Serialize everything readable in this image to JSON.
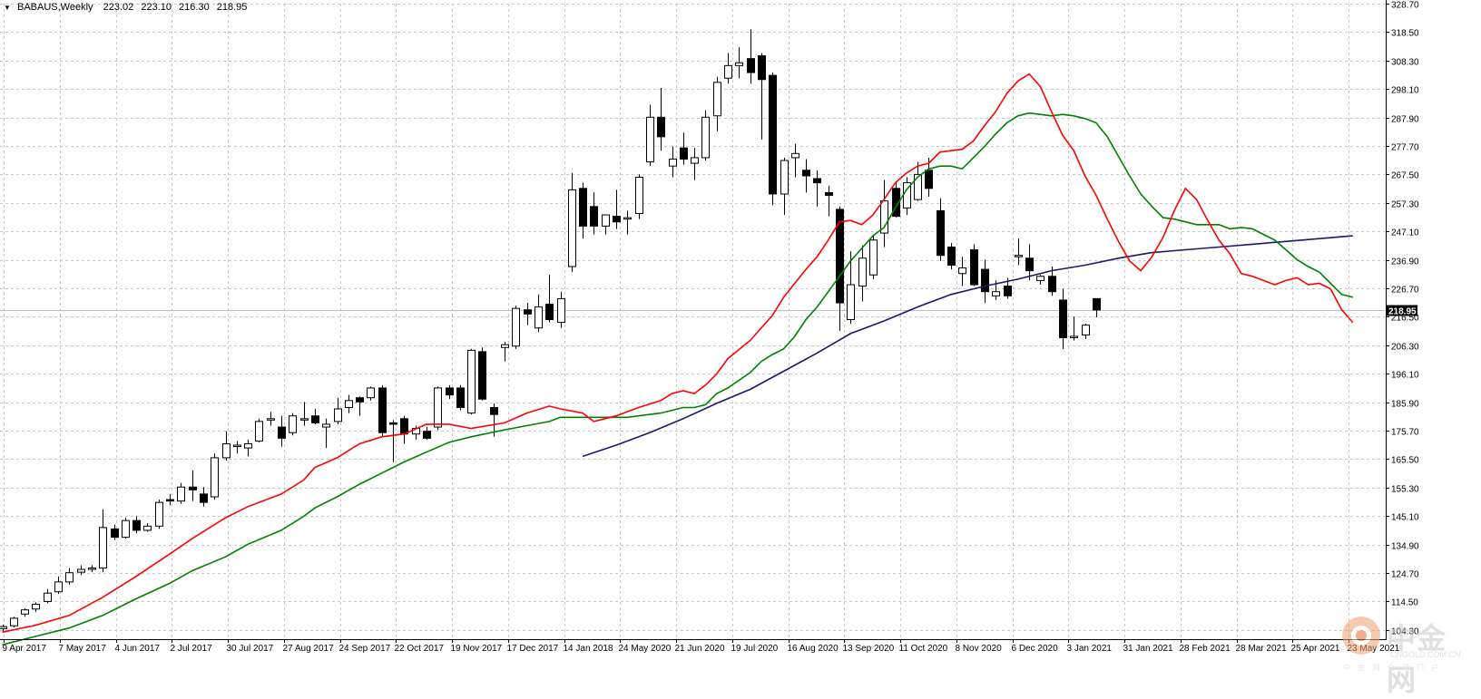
{
  "header": {
    "symbol": "BABAUS,Weekly",
    "open": "223.02",
    "high": "223.10",
    "low": "216.30",
    "close": "218.95"
  },
  "watermark": {
    "name": "中金网",
    "site": "CNGOLD.COM.CN",
    "tagline": "中 金 网 全 球 门 户"
  },
  "colors": {
    "background": "#ffffff",
    "grid": "#c8c8c8",
    "candle_up_fill": "#ffffff",
    "candle_down_fill": "#000000",
    "ma_fast": "#ff0000",
    "ma_medium": "#008000",
    "ma_slow": "#191970",
    "price_line": "#c0c0c0",
    "price_badge": "#000000"
  },
  "chart_data": {
    "type": "candlestick",
    "timeframe": "Weekly",
    "ylim": [
      101.0,
      328.7
    ],
    "grid": true,
    "y_ticks": [
      "328.70",
      "318.50",
      "308.30",
      "298.10",
      "287.90",
      "277.70",
      "267.50",
      "257.30",
      "247.10",
      "236.90",
      "226.70",
      "216.50",
      "206.30",
      "196.10",
      "185.90",
      "175.70",
      "165.50",
      "155.30",
      "145.10",
      "134.90",
      "124.70",
      "114.50",
      "104.30"
    ],
    "x_ticks": [
      "9 Apr 2017",
      "7 May 2017",
      "4 Jun 2017",
      "2 Jul 2017",
      "30 Jul 2017",
      "27 Aug 2017",
      "24 Sep 2017",
      "22 Oct 2017",
      "19 Nov 2017",
      "17 Dec 2017",
      "14 Jan 2018",
      "24 May 2020",
      "21 Jun 2020",
      "19 Jul 2020",
      "16 Aug 2020",
      "13 Sep 2020",
      "11 Oct 2020",
      "8 Nov 2020",
      "6 Dec 2020",
      "3 Jan 2021",
      "31 Jan 2021",
      "28 Feb 2021",
      "28 Mar 2021",
      "25 Apr 2021",
      "23 May 2021"
    ],
    "last_price": "218.95",
    "candles": [
      [
        104.8,
        106.2,
        103.8,
        105.5
      ],
      [
        105.8,
        109.0,
        105.2,
        108.5
      ],
      [
        110.0,
        112.0,
        109.0,
        111.5
      ],
      [
        111.8,
        114.2,
        110.8,
        113.5
      ],
      [
        114.5,
        119.0,
        113.8,
        117.5
      ],
      [
        118.0,
        123.5,
        117.2,
        121.5
      ],
      [
        121.5,
        126.5,
        120.5,
        124.8
      ],
      [
        125.0,
        127.5,
        124.0,
        126.0
      ],
      [
        126.0,
        127.5,
        125.0,
        126.5
      ],
      [
        126.5,
        147.5,
        125.0,
        141.0
      ],
      [
        140.5,
        142.0,
        136.5,
        137.5
      ],
      [
        137.5,
        144.5,
        137.0,
        143.5
      ],
      [
        143.5,
        145.0,
        139.0,
        140.0
      ],
      [
        140.0,
        142.5,
        139.5,
        141.5
      ],
      [
        141.5,
        151.0,
        140.5,
        150.0
      ],
      [
        151.0,
        153.0,
        149.0,
        150.5
      ],
      [
        150.5,
        157.0,
        149.5,
        155.5
      ],
      [
        155.5,
        161.5,
        150.5,
        154.5
      ],
      [
        153.0,
        155.5,
        148.5,
        150.0
      ],
      [
        152.0,
        167.5,
        151.0,
        166.0
      ],
      [
        166.0,
        175.5,
        165.0,
        171.0
      ],
      [
        170.0,
        172.0,
        167.5,
        170.5
      ],
      [
        169.5,
        172.5,
        166.5,
        171.0
      ],
      [
        172.0,
        180.0,
        171.5,
        179.0
      ],
      [
        179.5,
        182.5,
        177.5,
        180.0
      ],
      [
        177.0,
        181.0,
        170.0,
        173.0
      ],
      [
        175.0,
        182.0,
        174.0,
        181.0
      ],
      [
        179.5,
        186.0,
        177.5,
        180.0
      ],
      [
        181.0,
        183.5,
        178.0,
        178.5
      ],
      [
        177.0,
        180.0,
        169.5,
        178.0
      ],
      [
        179.0,
        187.5,
        178.0,
        183.5
      ],
      [
        184.0,
        188.5,
        182.0,
        186.5
      ],
      [
        187.5,
        188.0,
        181.0,
        186.0
      ],
      [
        187.5,
        191.5,
        186.5,
        191.0
      ],
      [
        191.0,
        192.0,
        173.5,
        175.0
      ],
      [
        178.5,
        179.5,
        164.5,
        178.0
      ],
      [
        180.0,
        181.0,
        171.0,
        174.5
      ],
      [
        174.5,
        177.5,
        172.5,
        176.5
      ],
      [
        175.5,
        177.0,
        172.5,
        173.0
      ],
      [
        177.0,
        191.5,
        176.0,
        191.0
      ],
      [
        191.0,
        192.0,
        187.0,
        188.5
      ],
      [
        191.0,
        192.0,
        183.0,
        184.0
      ],
      [
        182.0,
        205.0,
        181.5,
        204.5
      ],
      [
        204.0,
        205.5,
        186.5,
        187.0
      ],
      [
        184.0,
        185.5,
        173.5,
        181.5
      ],
      [
        205.5,
        207.5,
        200.5,
        206.5
      ],
      [
        206.0,
        220.5,
        205.0,
        219.5
      ],
      [
        219.0,
        221.5,
        213.5,
        217.5
      ],
      [
        212.5,
        224.5,
        211.0,
        220.0
      ],
      [
        221.0,
        231.5,
        214.5,
        215.5
      ],
      [
        214.5,
        225.5,
        212.5,
        223.0
      ],
      [
        234.5,
        268.0,
        232.5,
        262.0
      ],
      [
        262.5,
        264.5,
        244.5,
        249.0
      ],
      [
        256.0,
        261.0,
        246.0,
        249.0
      ],
      [
        249.0,
        252.0,
        246.0,
        253.0
      ],
      [
        252.5,
        262.0,
        248.0,
        250.5
      ],
      [
        251.5,
        254.5,
        246.0,
        252.0
      ],
      [
        253.5,
        267.5,
        251.5,
        266.5
      ],
      [
        272.0,
        292.5,
        270.5,
        288.0
      ],
      [
        288.0,
        298.5,
        276.0,
        281.0
      ],
      [
        270.5,
        277.5,
        266.5,
        273.0
      ],
      [
        277.0,
        282.5,
        271.0,
        273.0
      ],
      [
        271.5,
        277.0,
        265.5,
        273.5
      ],
      [
        273.5,
        290.5,
        272.5,
        288.0
      ],
      [
        288.5,
        302.5,
        283.0,
        300.5
      ],
      [
        302.0,
        311.0,
        300.0,
        306.5
      ],
      [
        306.5,
        313.0,
        302.0,
        307.5
      ],
      [
        309.0,
        319.5,
        300.0,
        304.0
      ],
      [
        310.0,
        311.0,
        280.0,
        301.5
      ],
      [
        303.0,
        304.0,
        256.5,
        260.5
      ],
      [
        260.5,
        273.5,
        253.0,
        272.5
      ],
      [
        273.5,
        278.5,
        266.5,
        275.0
      ],
      [
        269.0,
        273.0,
        261.0,
        267.0
      ],
      [
        266.0,
        269.0,
        256.0,
        264.5
      ],
      [
        261.0,
        263.5,
        252.5,
        260.0
      ],
      [
        255.0,
        256.0,
        211.5,
        221.5
      ],
      [
        215.5,
        240.0,
        214.0,
        228.0
      ],
      [
        227.5,
        242.0,
        222.0,
        237.5
      ],
      [
        231.5,
        245.5,
        230.0,
        244.0
      ],
      [
        246.5,
        265.5,
        241.5,
        258.0
      ],
      [
        262.5,
        265.0,
        252.0,
        252.5
      ],
      [
        255.5,
        266.5,
        253.0,
        264.5
      ],
      [
        258.5,
        272.0,
        258.0,
        267.5
      ],
      [
        269.0,
        273.5,
        259.5,
        262.5
      ],
      [
        254.5,
        259.0,
        236.5,
        238.5
      ],
      [
        241.5,
        243.0,
        233.5,
        235.0
      ],
      [
        232.0,
        238.0,
        227.5,
        234.0
      ],
      [
        240.5,
        242.5,
        227.5,
        228.0
      ],
      [
        233.5,
        237.0,
        221.5,
        225.5
      ],
      [
        224.0,
        229.5,
        222.5,
        225.5
      ],
      [
        227.5,
        230.5,
        223.0,
        224.0
      ],
      [
        238.0,
        244.5,
        235.0,
        238.5
      ],
      [
        237.5,
        242.5,
        229.5,
        233.0
      ],
      [
        229.5,
        231.5,
        228.0,
        231.0
      ],
      [
        231.0,
        234.5,
        224.0,
        225.5
      ],
      [
        222.5,
        226.5,
        205.0,
        209.0
      ],
      [
        209.0,
        216.5,
        208.0,
        209.5
      ],
      [
        210.0,
        214.0,
        208.5,
        213.5
      ],
      [
        223.02,
        223.1,
        216.3,
        218.95
      ]
    ],
    "ma_fast": [
      [
        0,
        103.5
      ],
      [
        3,
        106.0
      ],
      [
        6,
        109.5
      ],
      [
        9,
        116.0
      ],
      [
        12,
        123.5
      ],
      [
        15,
        131.5
      ],
      [
        17,
        137.0
      ],
      [
        20,
        144.5
      ],
      [
        22,
        148.5
      ],
      [
        25,
        153.0
      ],
      [
        27,
        158.0
      ],
      [
        28,
        162.5
      ],
      [
        30,
        166.0
      ],
      [
        32,
        171.0
      ],
      [
        34,
        173.5
      ],
      [
        36,
        174.5
      ],
      [
        38,
        178.0
      ],
      [
        40,
        178.0
      ],
      [
        42,
        176.5
      ],
      [
        45,
        178.5
      ],
      [
        47,
        182.0
      ],
      [
        49,
        184.5
      ],
      [
        50,
        183.5
      ],
      [
        52,
        182.0
      ],
      [
        53,
        179.0
      ],
      [
        55,
        181.0
      ],
      [
        56,
        182.5
      ],
      [
        57,
        184.0
      ],
      [
        59,
        186.5
      ],
      [
        60,
        189.0
      ],
      [
        61,
        190.0
      ],
      [
        62,
        189.0
      ],
      [
        63,
        192.0
      ],
      [
        64,
        196.0
      ],
      [
        65,
        201.5
      ],
      [
        67,
        208.0
      ],
      [
        68,
        212.5
      ],
      [
        69,
        217.0
      ],
      [
        70,
        223.5
      ],
      [
        71,
        228.5
      ],
      [
        72,
        233.5
      ],
      [
        73,
        238.0
      ],
      [
        74,
        244.0
      ],
      [
        75,
        250.5
      ],
      [
        76,
        251.0
      ],
      [
        77,
        249.5
      ],
      [
        78,
        253.0
      ],
      [
        79,
        258.5
      ],
      [
        80,
        264.5
      ],
      [
        81,
        268.0
      ],
      [
        82,
        270.5
      ],
      [
        83,
        271.5
      ],
      [
        84,
        275.5
      ],
      [
        85,
        276.0
      ],
      [
        86,
        276.5
      ],
      [
        87,
        279.5
      ],
      [
        88,
        285.0
      ],
      [
        89,
        290.0
      ],
      [
        90,
        296.5
      ],
      [
        91,
        301.0
      ],
      [
        92,
        303.5
      ],
      [
        93,
        299.0
      ],
      [
        94,
        290.0
      ],
      [
        95,
        281.5
      ],
      [
        96,
        276.0
      ],
      [
        97,
        267.0
      ],
      [
        98,
        260.0
      ],
      [
        99,
        251.5
      ],
      [
        100,
        243.5
      ],
      [
        101,
        236.5
      ],
      [
        102,
        233.0
      ],
      [
        103,
        238.0
      ],
      [
        104,
        245.0
      ],
      [
        105,
        254.5
      ],
      [
        106,
        262.5
      ],
      [
        107,
        258.5
      ],
      [
        108,
        251.0
      ],
      [
        109,
        244.0
      ],
      [
        110,
        239.0
      ],
      [
        111,
        232.0
      ],
      [
        112,
        231.0
      ],
      [
        113,
        229.5
      ],
      [
        114,
        228.0
      ],
      [
        115,
        229.5
      ],
      [
        116,
        230.5
      ],
      [
        117,
        228.0
      ],
      [
        118,
        228.5
      ],
      [
        119,
        226.5
      ],
      [
        120,
        219.0
      ],
      [
        121,
        214.5
      ]
    ],
    "ma_medium": [
      [
        0,
        99.0
      ],
      [
        3,
        102.0
      ],
      [
        6,
        105.0
      ],
      [
        9,
        109.5
      ],
      [
        12,
        115.5
      ],
      [
        15,
        121.0
      ],
      [
        17,
        125.5
      ],
      [
        20,
        130.5
      ],
      [
        22,
        135.0
      ],
      [
        25,
        140.0
      ],
      [
        27,
        145.0
      ],
      [
        28,
        148.0
      ],
      [
        30,
        152.0
      ],
      [
        32,
        156.5
      ],
      [
        34,
        160.5
      ],
      [
        36,
        164.5
      ],
      [
        38,
        168.0
      ],
      [
        40,
        171.5
      ],
      [
        42,
        173.5
      ],
      [
        45,
        176.0
      ],
      [
        47,
        177.5
      ],
      [
        49,
        179.0
      ],
      [
        50,
        180.5
      ],
      [
        52,
        180.5
      ],
      [
        53,
        180.5
      ],
      [
        55,
        180.5
      ],
      [
        56,
        180.5
      ],
      [
        57,
        181.0
      ],
      [
        59,
        182.0
      ],
      [
        60,
        183.0
      ],
      [
        61,
        184.0
      ],
      [
        62,
        184.0
      ],
      [
        63,
        185.0
      ],
      [
        64,
        189.0
      ],
      [
        65,
        191.0
      ],
      [
        67,
        196.5
      ],
      [
        68,
        200.5
      ],
      [
        69,
        203.0
      ],
      [
        70,
        205.0
      ],
      [
        71,
        209.5
      ],
      [
        72,
        215.5
      ],
      [
        73,
        220.0
      ],
      [
        74,
        225.5
      ],
      [
        75,
        231.0
      ],
      [
        76,
        236.5
      ],
      [
        77,
        241.0
      ],
      [
        78,
        245.5
      ],
      [
        79,
        248.5
      ],
      [
        80,
        255.5
      ],
      [
        81,
        262.0
      ],
      [
        82,
        266.5
      ],
      [
        83,
        269.5
      ],
      [
        84,
        270.5
      ],
      [
        85,
        270.5
      ],
      [
        86,
        269.5
      ],
      [
        87,
        273.5
      ],
      [
        88,
        277.5
      ],
      [
        89,
        282.0
      ],
      [
        90,
        286.0
      ],
      [
        91,
        288.5
      ],
      [
        92,
        289.5
      ],
      [
        93,
        289.0
      ],
      [
        94,
        288.5
      ],
      [
        95,
        289.0
      ],
      [
        96,
        288.5
      ],
      [
        97,
        287.5
      ],
      [
        98,
        286.0
      ],
      [
        99,
        281.0
      ],
      [
        100,
        274.0
      ],
      [
        101,
        267.0
      ],
      [
        102,
        260.5
      ],
      [
        103,
        256.0
      ],
      [
        104,
        252.0
      ],
      [
        105,
        251.5
      ],
      [
        106,
        250.5
      ],
      [
        107,
        249.5
      ],
      [
        108,
        249.5
      ],
      [
        109,
        249.5
      ],
      [
        110,
        248.0
      ],
      [
        111,
        248.5
      ],
      [
        112,
        248.0
      ],
      [
        113,
        246.0
      ],
      [
        114,
        244.0
      ],
      [
        115,
        240.5
      ],
      [
        116,
        237.0
      ],
      [
        117,
        234.5
      ],
      [
        118,
        232.5
      ],
      [
        119,
        228.5
      ],
      [
        120,
        224.5
      ],
      [
        121,
        223.5
      ]
    ],
    "ma_slow": [
      [
        52,
        166.5
      ],
      [
        55,
        170.5
      ],
      [
        58,
        175.0
      ],
      [
        61,
        180.0
      ],
      [
        64,
        185.5
      ],
      [
        67,
        190.5
      ],
      [
        70,
        197.0
      ],
      [
        73,
        203.5
      ],
      [
        76,
        210.5
      ],
      [
        79,
        215.0
      ],
      [
        82,
        220.0
      ],
      [
        85,
        224.5
      ],
      [
        88,
        227.5
      ],
      [
        91,
        230.0
      ],
      [
        94,
        233.0
      ],
      [
        97,
        235.0
      ],
      [
        100,
        237.5
      ],
      [
        103,
        239.5
      ],
      [
        106,
        240.5
      ],
      [
        109,
        241.5
      ],
      [
        112,
        242.5
      ],
      [
        115,
        243.5
      ],
      [
        118,
        244.5
      ],
      [
        121,
        245.5
      ]
    ]
  }
}
